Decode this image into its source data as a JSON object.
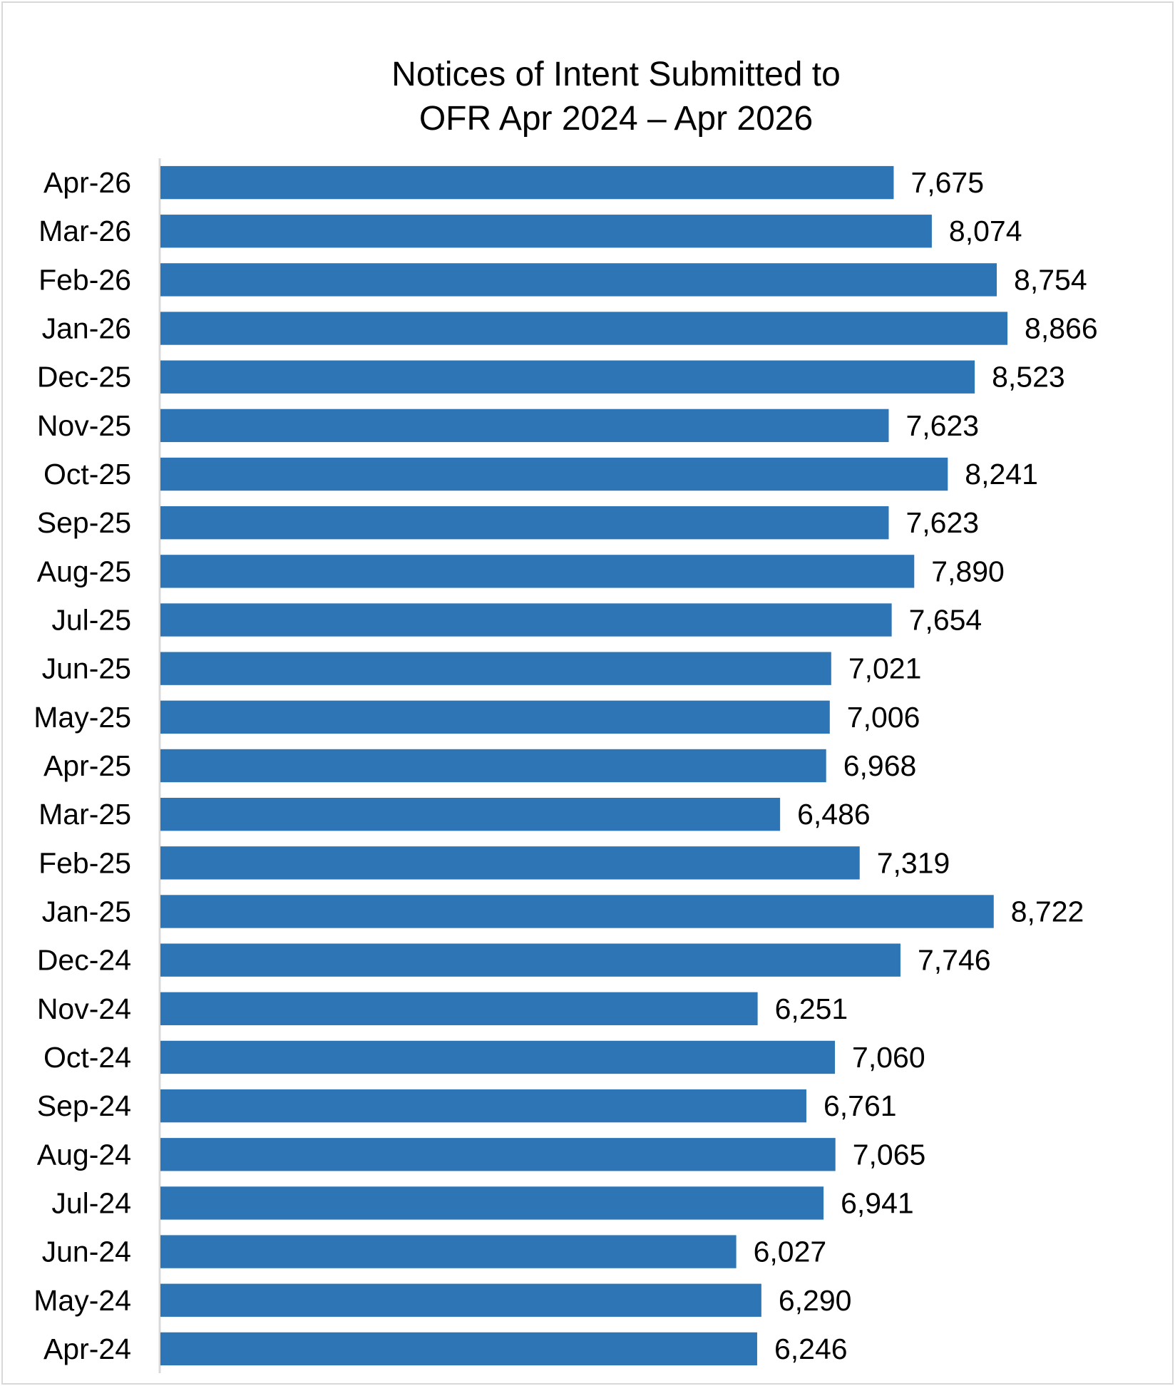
{
  "chart_data": {
    "type": "bar",
    "orientation": "horizontal",
    "title": "Notices of Intent Submitted to OFR Apr 2024 – Apr 2026",
    "title_lines": [
      "Notices of Intent Submitted to",
      "OFR Apr 2024 – Apr 2026"
    ],
    "categories": [
      "Apr-26",
      "Mar-26",
      "Feb-26",
      "Jan-26",
      "Dec-25",
      "Nov-25",
      "Oct-25",
      "Sep-25",
      "Aug-25",
      "Jul-25",
      "Jun-25",
      "May-25",
      "Apr-25",
      "Mar-25",
      "Feb-25",
      "Jan-25",
      "Dec-24",
      "Nov-24",
      "Oct-24",
      "Sep-24",
      "Aug-24",
      "Jul-24",
      "Jun-24",
      "May-24",
      "Apr-24"
    ],
    "values": [
      7675,
      8074,
      8754,
      8866,
      8523,
      7623,
      8241,
      7623,
      7890,
      7654,
      7021,
      7006,
      6968,
      6486,
      7319,
      8722,
      7746,
      6251,
      7060,
      6761,
      7065,
      6941,
      6027,
      6290,
      6246
    ],
    "data_labels": [
      "7,675",
      "8,074",
      "8,754",
      "8,866",
      "8,523",
      "7,623",
      "8,241",
      "7,623",
      "7,890",
      "7,654",
      "7,021",
      "7,006",
      "6,968",
      "6,486",
      "7,319",
      "8,722",
      "7,746",
      "6,251",
      "7,060",
      "6,761",
      "7,065",
      "6,941",
      "6,027",
      "6,290",
      "6,246"
    ],
    "xlim": [
      0,
      10000
    ],
    "grid": false,
    "legend": "none",
    "bar_color": "#2e75b6",
    "axis_color": "#d9d9d9"
  }
}
